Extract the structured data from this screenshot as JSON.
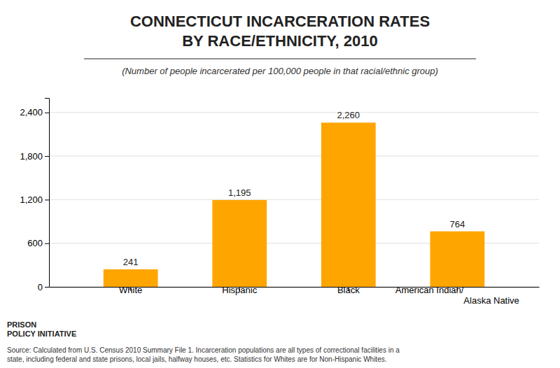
{
  "chart_data": {
    "type": "bar",
    "title": "CONNECTICUT INCARCERATION RATES\nBY RACE/ETHNICITY, 2010",
    "subtitle": "(Number of people incarcerated per 100,000 people in that racial/ethnic group)",
    "categories": [
      "White",
      "Hispanic",
      "Black",
      "American Indian/\nAlaska Native"
    ],
    "values": [
      241,
      1195,
      2260,
      764
    ],
    "value_labels": [
      "241",
      "1,195",
      "2,260",
      "764"
    ],
    "data_labels": true,
    "color": "#FFA500",
    "ylim": [
      0,
      2600
    ],
    "yticks": [
      0,
      600,
      {
        "value": 1200,
        "label": "1,200"
      },
      {
        "value": 1800,
        "label": "1,800"
      },
      {
        "value": 2400,
        "label": "2,400"
      }
    ],
    "grid": true,
    "annotations": [
      "PRISON\nPOLICY INITIATIVE",
      "Source: Calculated from U.S. Census 2010 Summary File 1. Incarceration populations are all types of correctional facilities in a\nstate, including federal and state prisons, local jails, halfway houses, etc. Statistics for Whites are for Non-Hispanic Whites."
    ]
  }
}
